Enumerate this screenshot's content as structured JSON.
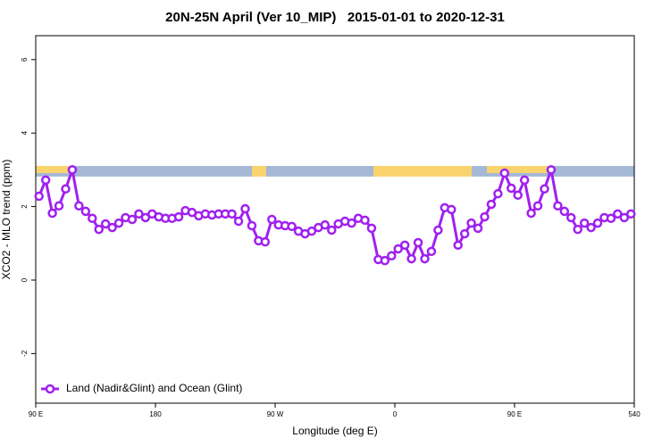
{
  "chart_data": {
    "type": "line",
    "title": "20N-25N April (Ver 10_MIP)   2015-01-01 to 2020-12-31",
    "xlabel": "Longitude (deg E)",
    "ylabel": "XCO2 - MLO trend (ppm)",
    "xlim": [
      90,
      540
    ],
    "ylim": [
      -3.35,
      6.65
    ],
    "xticks": [
      {
        "value": 90,
        "label": "90 E"
      },
      180,
      {
        "value": 270,
        "label": "90 W"
      },
      {
        "value": 360,
        "label": "0"
      },
      {
        "value": 450,
        "label": "90 E"
      },
      540
    ],
    "yticks": [
      -2,
      0,
      2,
      4,
      6
    ],
    "legend": "bottom-left",
    "series": [
      {
        "name": "Land (Nadir&Glint) and Ocean (Glint)",
        "color": "#a020f0",
        "x": [
          92.5,
          97.5,
          102.5,
          107.5,
          112.5,
          117.5,
          122.5,
          127.5,
          132.5,
          137.5,
          142.5,
          147.5,
          152.5,
          157.5,
          162.5,
          167.5,
          172.5,
          177.5,
          182.5,
          187.5,
          192.5,
          197.5,
          202.5,
          207.5,
          212.5,
          217.5,
          222.5,
          227.5,
          232.5,
          237.5,
          242.5,
          247.5,
          252.5,
          257.5,
          262.5,
          267.5,
          272.5,
          277.5,
          282.5,
          287.5,
          292.5,
          297.5,
          302.5,
          307.5,
          312.5,
          317.5,
          322.5,
          327.5,
          332.5,
          337.5,
          342.5,
          347.5,
          352.5,
          357.5,
          362.5,
          367.5,
          372.5,
          377.5,
          382.5,
          387.5,
          392.5,
          397.5,
          402.5,
          407.5,
          412.5,
          417.5,
          422.5,
          427.5,
          432.5,
          437.5,
          442.5,
          447.5,
          452.5,
          457.5,
          462.5,
          467.5,
          472.5,
          477.5,
          482.5,
          487.5,
          492.5,
          497.5,
          502.5,
          507.5,
          512.5,
          517.5,
          522.5,
          527.5,
          532.5,
          537.5
        ],
        "values": [
          2.28,
          2.72,
          1.82,
          2.02,
          2.48,
          3.0,
          2.02,
          1.87,
          1.68,
          1.38,
          1.53,
          1.43,
          1.55,
          1.7,
          1.65,
          1.8,
          1.7,
          1.8,
          1.72,
          1.68,
          1.68,
          1.72,
          1.89,
          1.84,
          1.75,
          1.8,
          1.77,
          1.8,
          1.8,
          1.8,
          1.6,
          1.94,
          1.48,
          1.07,
          1.04,
          1.65,
          1.5,
          1.48,
          1.46,
          1.33,
          1.26,
          1.33,
          1.43,
          1.5,
          1.36,
          1.53,
          1.6,
          1.55,
          1.68,
          1.63,
          1.41,
          0.56,
          0.53,
          0.66,
          0.85,
          0.95,
          0.58,
          1.02,
          0.58,
          0.78,
          1.36,
          1.97,
          1.92,
          0.95,
          1.26,
          1.55,
          1.41,
          1.72,
          2.06,
          2.35,
          2.91,
          2.5,
          2.31,
          2.72,
          1.82,
          2.02,
          2.48,
          3.0,
          2.02,
          1.87,
          1.7,
          1.38,
          1.55,
          1.43,
          1.55,
          1.7,
          1.68,
          1.8,
          1.7,
          1.8
        ]
      }
    ]
  }
}
